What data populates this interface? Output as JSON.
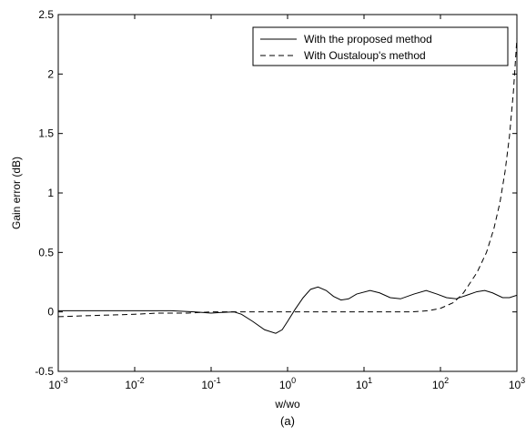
{
  "chart_data": {
    "type": "line",
    "title": "",
    "caption": "(a)",
    "xlabel": "w/wo",
    "ylabel": "Gain error (dB)",
    "xscale": "log",
    "xlim": [
      0.001,
      1000
    ],
    "ylim": [
      -0.5,
      2.5
    ],
    "x_ticks": [
      {
        "value": 0.001,
        "base": "10",
        "exp": "-3"
      },
      {
        "value": 0.01,
        "base": "10",
        "exp": "-2"
      },
      {
        "value": 0.1,
        "base": "10",
        "exp": "-1"
      },
      {
        "value": 1,
        "base": "10",
        "exp": "0"
      },
      {
        "value": 10,
        "base": "10",
        "exp": "1"
      },
      {
        "value": 100,
        "base": "10",
        "exp": "2"
      },
      {
        "value": 1000,
        "base": "10",
        "exp": "3"
      }
    ],
    "y_ticks": [
      {
        "value": -0.5,
        "label": "-0.5"
      },
      {
        "value": 0,
        "label": "0"
      },
      {
        "value": 0.5,
        "label": "0.5"
      },
      {
        "value": 1,
        "label": "1"
      },
      {
        "value": 1.5,
        "label": "1.5"
      },
      {
        "value": 2,
        "label": "2"
      },
      {
        "value": 2.5,
        "label": "2.5"
      }
    ],
    "grid": false,
    "legend_position": "top-right",
    "series": [
      {
        "name": "With the proposed method",
        "style": "solid",
        "color": "#000000",
        "points": [
          [
            0.001,
            0.01
          ],
          [
            0.003,
            0.01
          ],
          [
            0.01,
            0.01
          ],
          [
            0.03,
            0.01
          ],
          [
            0.06,
            0.0
          ],
          [
            0.08,
            -0.005
          ],
          [
            0.1,
            -0.01
          ],
          [
            0.13,
            -0.005
          ],
          [
            0.2,
            0.0
          ],
          [
            0.25,
            -0.02
          ],
          [
            0.35,
            -0.08
          ],
          [
            0.5,
            -0.15
          ],
          [
            0.7,
            -0.18
          ],
          [
            0.85,
            -0.15
          ],
          [
            1.0,
            -0.08
          ],
          [
            1.25,
            0.02
          ],
          [
            1.6,
            0.12
          ],
          [
            2.0,
            0.19
          ],
          [
            2.5,
            0.21
          ],
          [
            3.2,
            0.18
          ],
          [
            4.0,
            0.13
          ],
          [
            5.0,
            0.1
          ],
          [
            6.3,
            0.11
          ],
          [
            8.0,
            0.15
          ],
          [
            12.0,
            0.18
          ],
          [
            16.0,
            0.16
          ],
          [
            22.0,
            0.12
          ],
          [
            30.0,
            0.11
          ],
          [
            45.0,
            0.15
          ],
          [
            65.0,
            0.18
          ],
          [
            90.0,
            0.15
          ],
          [
            120.0,
            0.12
          ],
          [
            160.0,
            0.11
          ],
          [
            220.0,
            0.14
          ],
          [
            300.0,
            0.17
          ],
          [
            380.0,
            0.18
          ],
          [
            480.0,
            0.16
          ],
          [
            650.0,
            0.12
          ],
          [
            800.0,
            0.12
          ],
          [
            1000.0,
            0.14
          ]
        ]
      },
      {
        "name": "With Oustaloup's method",
        "style": "dashed",
        "color": "#000000",
        "points": [
          [
            0.001,
            -0.04
          ],
          [
            0.003,
            -0.03
          ],
          [
            0.01,
            -0.02
          ],
          [
            0.02,
            -0.01
          ],
          [
            0.05,
            -0.01
          ],
          [
            0.1,
            0.0
          ],
          [
            1.0,
            0.0
          ],
          [
            10.0,
            0.0
          ],
          [
            40.0,
            0.0
          ],
          [
            70.0,
            0.01
          ],
          [
            100.0,
            0.03
          ],
          [
            150.0,
            0.08
          ],
          [
            200.0,
            0.16
          ],
          [
            300.0,
            0.33
          ],
          [
            400.0,
            0.5
          ],
          [
            500.0,
            0.7
          ],
          [
            600.0,
            0.92
          ],
          [
            700.0,
            1.18
          ],
          [
            800.0,
            1.48
          ],
          [
            900.0,
            1.85
          ],
          [
            1000.0,
            2.3
          ]
        ]
      }
    ]
  }
}
